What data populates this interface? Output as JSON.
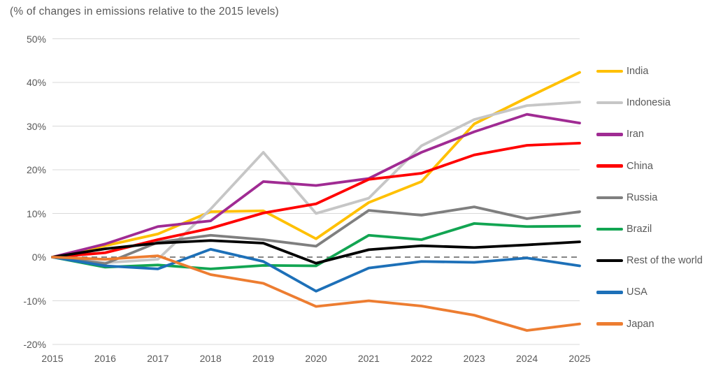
{
  "chart_data": {
    "type": "line",
    "title": "(% of changes in emissions relative to the 2015 levels)",
    "x": [
      2015,
      2016,
      2017,
      2018,
      2019,
      2020,
      2021,
      2022,
      2023,
      2024,
      2025
    ],
    "x_tick_labels": [
      "2015",
      "2016",
      "2017",
      "2018",
      "2019",
      "2020",
      "2021",
      "2022",
      "2023",
      "2024",
      "2025"
    ],
    "y_ticks": [
      50,
      40,
      30,
      20,
      10,
      0,
      -10,
      -20
    ],
    "y_tick_labels": [
      "50%",
      "40%",
      "30%",
      "20%",
      "10%",
      "0%",
      "-10%",
      "-20%"
    ],
    "ylim": [
      -20,
      50
    ],
    "unit": "%",
    "grid": "horizontal",
    "zero_line_style": "dashed",
    "legend_position": "right",
    "colors": {
      "gridline": "#D9D9D9",
      "zero_dashed_line": "#757575",
      "axis_text": "#595959"
    },
    "series": [
      {
        "name": "India",
        "color": "#FFC000",
        "values": [
          0,
          2.6,
          5.3,
          10.4,
          10.6,
          4.2,
          12.5,
          17.3,
          30.5,
          36.5,
          42.3
        ]
      },
      {
        "name": "Indonesia",
        "color": "#C6C6C6",
        "values": [
          0,
          -1.3,
          -0.5,
          11.0,
          24.0,
          10.0,
          13.5,
          25.5,
          31.5,
          34.7,
          35.5
        ]
      },
      {
        "name": "Iran",
        "color": "#A02B93",
        "values": [
          0,
          3.0,
          7.0,
          8.3,
          17.3,
          16.4,
          18.0,
          24.0,
          28.7,
          32.7,
          30.7
        ]
      },
      {
        "name": "China",
        "color": "#FF0000",
        "values": [
          0,
          1.0,
          4.0,
          6.6,
          10.1,
          12.2,
          17.8,
          19.2,
          23.4,
          25.6,
          26.1
        ]
      },
      {
        "name": "Russia",
        "color": "#7F7F7F",
        "values": [
          0,
          -1.5,
          3.4,
          5.0,
          4.0,
          2.5,
          10.7,
          9.6,
          11.5,
          8.8,
          10.4
        ]
      },
      {
        "name": "Brazil",
        "color": "#12A552",
        "values": [
          0,
          -2.3,
          -1.8,
          -2.7,
          -1.9,
          -2.0,
          5.0,
          4.0,
          7.7,
          7.0,
          7.1
        ]
      },
      {
        "name": "Rest of the world",
        "color": "#000000",
        "values": [
          0,
          1.9,
          3.2,
          3.8,
          3.2,
          -1.4,
          1.7,
          2.6,
          2.2,
          2.8,
          3.5
        ]
      },
      {
        "name": "USA",
        "color": "#1D70B8",
        "values": [
          0,
          -2.0,
          -2.7,
          1.8,
          -1.0,
          -7.8,
          -2.5,
          -1.0,
          -1.2,
          -0.2,
          -2.0
        ]
      },
      {
        "name": "Japan",
        "color": "#ED7D31",
        "values": [
          0,
          -0.5,
          0.3,
          -4.0,
          -6.0,
          -11.3,
          -10.0,
          -11.2,
          -13.3,
          -16.8,
          -15.3
        ]
      }
    ]
  }
}
